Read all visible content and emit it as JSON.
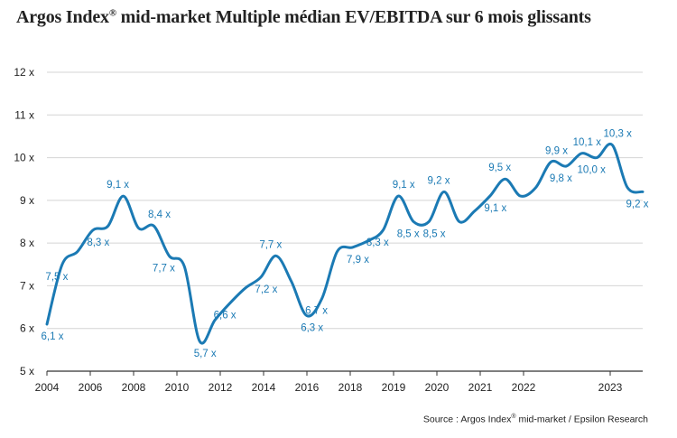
{
  "title": {
    "prefix": "Argos Index",
    "sup": "®",
    "rest": " mid-market Multiple médian EV/EBITDA sur 6 mois glissants"
  },
  "source": {
    "prefix": "Source : Argos Index",
    "sup": "®",
    "rest": " mid-market / Epsilon Research"
  },
  "colors": {
    "line": "#1b7ab4",
    "grid": "#d4d4d4",
    "axis": "#333333",
    "text": "#222222"
  },
  "chart_data": {
    "type": "line",
    "title": "Argos Index® mid-market Multiple médian EV/EBITDA sur 6 mois glissants",
    "xlabel": "",
    "ylabel": "",
    "xlim": [
      2004,
      2023.8
    ],
    "ylim": [
      5,
      12
    ],
    "grid": "horizontal",
    "x_ticks": [
      "2004",
      "2006",
      "2008",
      "2010",
      "2012",
      "2014",
      "2016",
      "2018",
      "2019",
      "2020",
      "2021",
      "2022",
      "2023"
    ],
    "y_ticks": [
      "5 x",
      "6 x",
      "7 x",
      "8 x",
      "9 x",
      "10 x",
      "11 x",
      "12 x"
    ],
    "series": [
      {
        "x": [
          2004.0,
          2004.5,
          2005.0,
          2005.5,
          2006.0,
          2006.5,
          2007.0,
          2007.5,
          2008.0,
          2008.5,
          2009.0,
          2009.5,
          2010.0,
          2010.5,
          2011.0,
          2011.5,
          2012.0,
          2012.5,
          2013.0,
          2013.5,
          2014.0,
          2014.5,
          2015.0,
          2015.5,
          2016.0,
          2016.5,
          2017.0,
          2017.5,
          2018.0,
          2018.5,
          2019.0,
          2019.5,
          2020.0,
          2020.5,
          2021.0,
          2021.5,
          2022.0,
          2022.5,
          2023.0,
          2023.5
        ],
        "y": [
          6.1,
          7.5,
          7.8,
          8.3,
          8.4,
          9.1,
          8.35,
          8.4,
          7.7,
          7.45,
          5.7,
          6.2,
          6.6,
          6.95,
          7.2,
          7.7,
          7.1,
          6.3,
          6.7,
          7.8,
          7.9,
          8.05,
          8.3,
          9.1,
          8.5,
          8.5,
          9.2,
          8.5,
          8.75,
          9.1,
          9.5,
          9.1,
          9.3,
          9.9,
          9.8,
          10.1,
          10.0,
          10.3,
          9.3,
          9.2
        ]
      }
    ],
    "labels": [
      {
        "text": "6,1 x",
        "x": 2004.0,
        "y": 6.1
      },
      {
        "text": "7,5 x",
        "x": 2004.5,
        "y": 7.5
      },
      {
        "text": "8,3 x",
        "x": 2005.5,
        "y": 8.3
      },
      {
        "text": "9,1 x",
        "x": 2006.5,
        "y": 9.1
      },
      {
        "text": "8,4 x",
        "x": 2007.5,
        "y": 8.4
      },
      {
        "text": "7,7 x",
        "x": 2008.0,
        "y": 7.7
      },
      {
        "text": "5,7 x",
        "x": 2009.0,
        "y": 5.7
      },
      {
        "text": "6,6 x",
        "x": 2010.0,
        "y": 6.6
      },
      {
        "text": "7,2 x",
        "x": 2011.0,
        "y": 7.2
      },
      {
        "text": "7,7 x",
        "x": 2011.5,
        "y": 7.7
      },
      {
        "text": "6,3 x",
        "x": 2012.5,
        "y": 6.3
      },
      {
        "text": "6,7 x",
        "x": 2013.0,
        "y": 6.7
      },
      {
        "text": "7,9 x",
        "x": 2014.0,
        "y": 7.9
      },
      {
        "text": "8,3 x",
        "x": 2015.0,
        "y": 8.3
      },
      {
        "text": "9,1 x",
        "x": 2015.5,
        "y": 9.1
      },
      {
        "text": "8,5 x",
        "x": 2016.0,
        "y": 8.5
      },
      {
        "text": "8,5 x",
        "x": 2016.5,
        "y": 8.5
      },
      {
        "text": "9,2 x",
        "x": 2017.0,
        "y": 9.2
      },
      {
        "text": "9,1 x",
        "x": 2018.5,
        "y": 9.1
      },
      {
        "text": "9,5 x",
        "x": 2019.0,
        "y": 9.5
      },
      {
        "text": "9,9 x",
        "x": 2020.5,
        "y": 9.9
      },
      {
        "text": "9,8 x",
        "x": 2021.0,
        "y": 9.8
      },
      {
        "text": "10,1 x",
        "x": 2021.5,
        "y": 10.1
      },
      {
        "text": "10,0 x",
        "x": 2022.0,
        "y": 10.0
      },
      {
        "text": "10,3 x",
        "x": 2022.5,
        "y": 10.3
      },
      {
        "text": "9,2 x",
        "x": 2023.5,
        "y": 9.2
      }
    ]
  }
}
